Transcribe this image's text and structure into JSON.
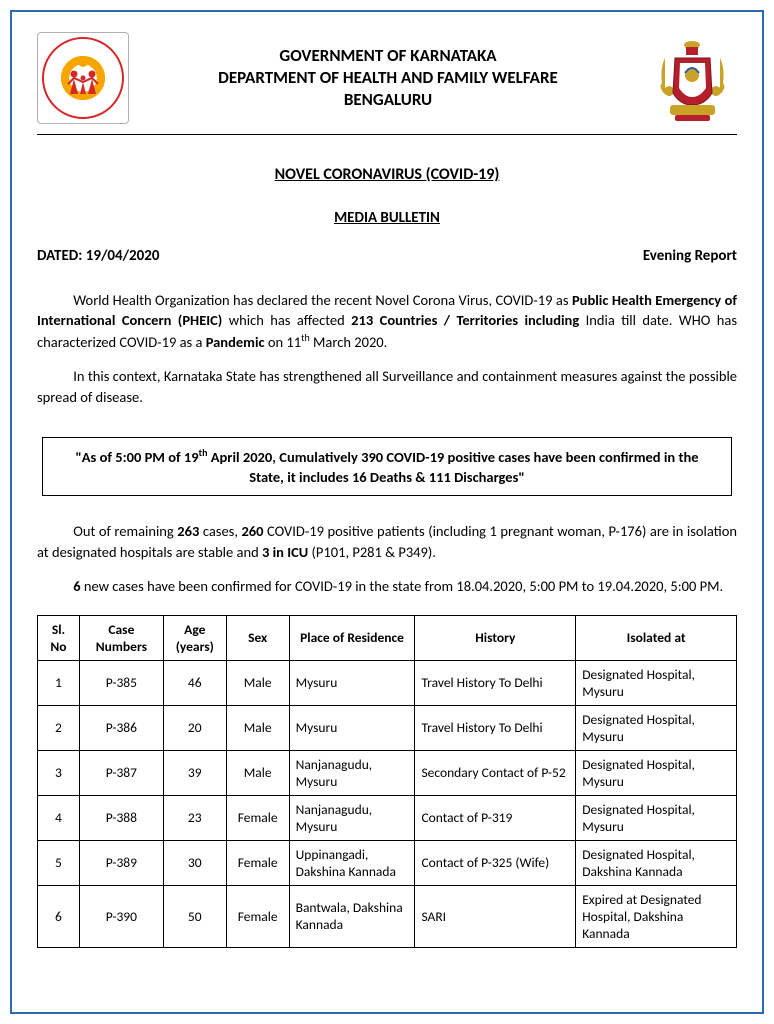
{
  "header": {
    "line1": "GOVERNMENT OF KARNATAKA",
    "line2": "DEPARTMENT OF HEALTH AND FAMILY WELFARE",
    "line3": "BENGALURU"
  },
  "title_main": "NOVEL CORONAVIRUS (COVID-19)",
  "title_sub": "MEDIA BULLETIN",
  "date_label": "DATED: 19/04/2020",
  "report_label": "Evening Report",
  "para1_pre": "World Health Organization has declared the recent Novel Corona Virus, COVID-19 as ",
  "para1_b1": "Public Health Emergency of International Concern (PHEIC)",
  "para1_mid1": " which has affected ",
  "para1_b2": "213 Countries / Territories including",
  "para1_mid2": " India till date. WHO has characterized COVID-19 as a ",
  "para1_b3": "Pandemic",
  "para1_mid3": " on 11",
  "para1_sup": "th",
  "para1_end": " March 2020.",
  "para2": "In this context, Karnataka State has strengthened all Surveillance and containment measures against the possible spread of disease.",
  "highlight_pre": "\"As of 5:00 PM of  19",
  "highlight_sup": "th",
  "highlight_end": " April 2020,  Cumulatively 390 COVID-19 positive cases have been confirmed in the State, it includes 16 Deaths & 111 Discharges\"",
  "para3_pre": "Out of remaining ",
  "para3_b1": "263",
  "para3_mid1": " cases, ",
  "para3_b2": "260",
  "para3_mid2": " COVID-19 positive patients (including 1 pregnant woman, P-176) are in isolation at designated hospitals are stable and ",
  "para3_b3": "3 in ICU",
  "para3_end": " (P101, P281 & P349).",
  "para4_b1": "6",
  "para4_rest": " new cases have been confirmed for COVID-19 in the state from 18.04.2020, 5:00 PM to 19.04.2020, 5:00 PM.",
  "table": {
    "columns": [
      "Sl. No",
      "Case Numbers",
      "Age (years)",
      "Sex",
      "Place of Residence",
      "History",
      "Isolated at"
    ],
    "col_widths": [
      "6%",
      "12%",
      "9%",
      "9%",
      "18%",
      "23%",
      "23%"
    ],
    "col_align": [
      "center",
      "center",
      "center",
      "center",
      "left",
      "left",
      "left"
    ],
    "rows": [
      [
        "1",
        "P-385",
        "46",
        "Male",
        "Mysuru",
        "Travel History To Delhi",
        "Designated Hospital, Mysuru"
      ],
      [
        "2",
        "P-386",
        "20",
        "Male",
        "Mysuru",
        "Travel History To Delhi",
        "Designated Hospital, Mysuru"
      ],
      [
        "3",
        "P-387",
        "39",
        "Male",
        "Nanjanagudu, Mysuru",
        "Secondary Contact of P-52",
        "Designated Hospital, Mysuru"
      ],
      [
        "4",
        "P-388",
        "23",
        "Female",
        "Nanjanagudu, Mysuru",
        "Contact of P-319",
        "Designated Hospital, Mysuru"
      ],
      [
        "5",
        "P-389",
        "30",
        "Female",
        "Uppinangadi, Dakshina Kannada",
        "Contact of P-325 (Wife)",
        "Designated Hospital, Dakshina Kannada"
      ],
      [
        "6",
        "P-390",
        "50",
        "Female",
        "Bantwala, Dakshina Kannada",
        "SARI",
        "Expired at Designated Hospital, Dakshina Kannada"
      ]
    ]
  },
  "colors": {
    "page_border": "#2a6cb0",
    "text": "#000000",
    "nhm_red": "#d62828",
    "nhm_orange": "#f7a600",
    "emblem_gold": "#c9a227",
    "emblem_red": "#b3202c"
  }
}
